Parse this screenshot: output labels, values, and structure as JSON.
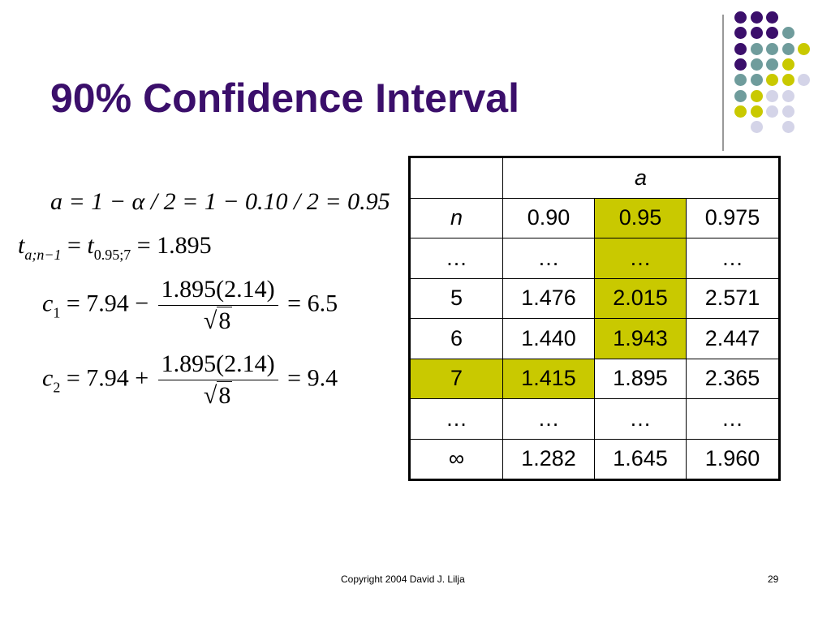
{
  "slide": {
    "title": "90% Confidence Interval",
    "footer_copyright": "Copyright 2004 David J. Lilja",
    "page_number": "29"
  },
  "colors": {
    "title": "#3b0f6b",
    "highlight": "#c9c900",
    "dot_purple": "#3b0f6b",
    "dot_teal": "#6f9c9c",
    "dot_yellow": "#c9c900",
    "dot_lavender": "#d4d4e8"
  },
  "equations": {
    "eq1": "a = 1 − α / 2 = 1 − 0.10 / 2 = 0.95",
    "eq2": {
      "lhs": "t",
      "lhs_sub": "a;n−1",
      "t": "t",
      "t_sub": "0.95;7",
      "rhs": "= 1.895"
    },
    "eq3": {
      "lhs": "c",
      "lhs_sub": "1",
      "pre": "= 7.94 −",
      "num": "1.895(2.14)",
      "den": "8",
      "rhs": "= 6.5"
    },
    "eq4": {
      "lhs": "c",
      "lhs_sub": "2",
      "pre": "= 7.94 +",
      "num": "1.895(2.14)",
      "den": "8",
      "rhs": "= 9.4"
    }
  },
  "table": {
    "header_a": "a",
    "header_row": [
      "n",
      "0.90",
      "0.95",
      "0.975"
    ],
    "rows": [
      [
        "…",
        "…",
        "…",
        "…"
      ],
      [
        "5",
        "1.476",
        "2.015",
        "2.571"
      ],
      [
        "6",
        "1.440",
        "1.943",
        "2.447"
      ],
      [
        "7",
        "1.415",
        "1.895",
        "2.365"
      ],
      [
        "…",
        "…",
        "…",
        "…"
      ],
      [
        "∞",
        "1.282",
        "1.645",
        "1.960"
      ]
    ]
  }
}
